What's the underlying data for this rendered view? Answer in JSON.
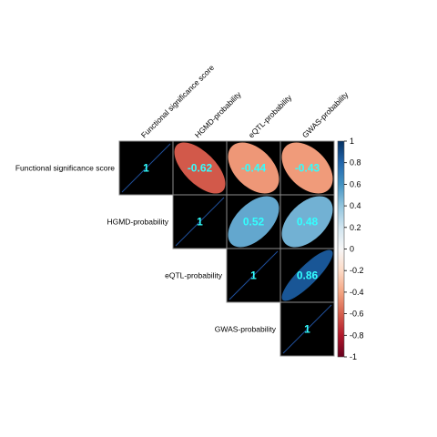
{
  "chart_data": {
    "type": "heatmap",
    "variables": [
      "Functional significance score",
      "HGMD-probability",
      "eQTL-probability",
      "GWAS-probability"
    ],
    "layout": "upper-triangle",
    "cells": [
      {
        "row": 0,
        "col": 0,
        "value": 1,
        "label": "1"
      },
      {
        "row": 0,
        "col": 1,
        "value": -0.62,
        "label": "-0.62"
      },
      {
        "row": 0,
        "col": 2,
        "value": -0.44,
        "label": "-0.44"
      },
      {
        "row": 0,
        "col": 3,
        "value": -0.43,
        "label": "-0.43"
      },
      {
        "row": 1,
        "col": 1,
        "value": 1,
        "label": "1"
      },
      {
        "row": 1,
        "col": 2,
        "value": 0.52,
        "label": "0.52"
      },
      {
        "row": 1,
        "col": 3,
        "value": 0.48,
        "label": "0.48"
      },
      {
        "row": 2,
        "col": 2,
        "value": 1,
        "label": "1"
      },
      {
        "row": 2,
        "col": 3,
        "value": 0.86,
        "label": "0.86"
      },
      {
        "row": 3,
        "col": 3,
        "value": 1,
        "label": "1"
      }
    ],
    "colorbar": {
      "range": [
        -1,
        1
      ],
      "ticks": [
        1,
        0.8,
        0.6,
        0.4,
        0.2,
        0,
        -0.2,
        -0.4,
        -0.6,
        -0.8,
        -1
      ],
      "tick_labels": [
        "1",
        "0.8",
        "0.6",
        "0.4",
        "0.2",
        "0",
        "-0.2",
        "-0.4",
        "-0.6",
        "-0.8",
        "-1"
      ],
      "placement": "right"
    },
    "colors": {
      "cell_background": "#000000",
      "grid": "#8c8c8c",
      "value_text": "#33ffff",
      "diagonal_line": "#1f4e9a",
      "scale": [
        "#67001f",
        "#b2182b",
        "#d6604d",
        "#f4a582",
        "#fddbc7",
        "#f7f7f7",
        "#d1e5f0",
        "#92c5de",
        "#4393c3",
        "#2166ac",
        "#053061"
      ]
    }
  }
}
